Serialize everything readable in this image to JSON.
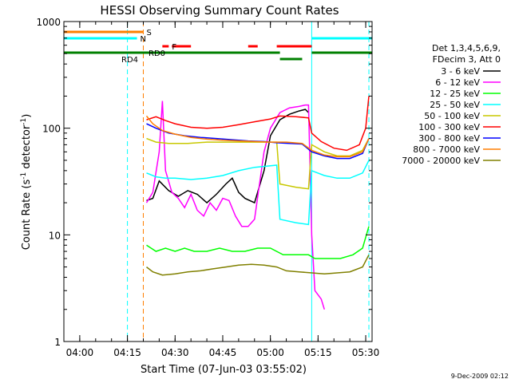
{
  "chart_data": {
    "type": "line",
    "title": "HESSI Observing Summary Count Rates",
    "xlabel": "Start Time (07-Jun-03 03:55:02)",
    "ylabel": "Count Rate (s",
    "ylabel_sup1": "-1",
    "ylabel_mid": " detector",
    "ylabel_sup2": "-1",
    "ylabel_end": ")",
    "y_scale": "log",
    "ylim": [
      1,
      1000
    ],
    "xlim": [
      "03:55",
      "05:32"
    ],
    "x_ticks": [
      "04:00",
      "04:15",
      "04:30",
      "04:45",
      "05:00",
      "05:15",
      "05:30"
    ],
    "y_ticks": [
      "1",
      "10",
      "100",
      "1000"
    ],
    "timestamp": "9-Dec-2009 02:12",
    "legend_header": [
      "Det 1,3,4,5,6,9,",
      "FDecim 3, Att 0"
    ],
    "legend_placement": "right",
    "flags": [
      {
        "label": "S",
        "color": "#ff7f00",
        "segments": [
          [
            "03:55",
            "04:20"
          ]
        ]
      },
      {
        "label": "N",
        "color": "#00ffff",
        "segments": [
          [
            "03:55",
            "04:18"
          ],
          [
            "05:13",
            "05:32"
          ]
        ]
      },
      {
        "label": "F",
        "color": "#ff0000",
        "segments": [
          [
            "04:26",
            "04:28"
          ],
          [
            "04:29",
            "04:35"
          ],
          [
            "04:53",
            "04:56"
          ],
          [
            "05:02",
            "05:13"
          ]
        ]
      },
      {
        "label": "RD0",
        "color": "#008000",
        "segments": [
          [
            "03:55",
            "05:03"
          ],
          [
            "05:13",
            "05:32"
          ]
        ]
      },
      {
        "label": "RD4",
        "color": "#008000",
        "segments": [
          [
            "05:03",
            "05:10"
          ]
        ]
      }
    ],
    "vlines": [
      {
        "time": "04:15",
        "color": "#00ffff",
        "style": "dashed"
      },
      {
        "time": "04:20",
        "color": "#ff7f00",
        "style": "dashed"
      },
      {
        "time": "05:13",
        "color": "#00ffff",
        "style": "solid"
      },
      {
        "time": "05:31",
        "color": "#00ffff",
        "style": "dashed"
      }
    ],
    "series": [
      {
        "name": "3 - 6 keV",
        "color": "#000000",
        "points": [
          [
            "04:21",
            21
          ],
          [
            "04:23",
            22
          ],
          [
            "04:25",
            32
          ],
          [
            "04:28",
            26
          ],
          [
            "04:31",
            23
          ],
          [
            "04:34",
            26
          ],
          [
            "04:37",
            24
          ],
          [
            "04:40",
            20
          ],
          [
            "04:43",
            24
          ],
          [
            "04:46",
            30
          ],
          [
            "04:48",
            34
          ],
          [
            "04:50",
            25
          ],
          [
            "04:52",
            22
          ],
          [
            "04:55",
            20
          ],
          [
            "04:58",
            40
          ],
          [
            "05:00",
            85
          ],
          [
            "05:03",
            120
          ],
          [
            "05:06",
            135
          ],
          [
            "05:09",
            145
          ],
          [
            "05:11",
            150
          ],
          [
            "05:12",
            140
          ]
        ]
      },
      {
        "name": "6 - 12 keV",
        "color": "#ff00ff",
        "points": [
          [
            "04:21",
            20
          ],
          [
            "04:23",
            25
          ],
          [
            "04:25",
            60
          ],
          [
            "04:26",
            180
          ],
          [
            "04:27",
            40
          ],
          [
            "04:29",
            25
          ],
          [
            "04:31",
            22
          ],
          [
            "04:33",
            18
          ],
          [
            "04:35",
            24
          ],
          [
            "04:37",
            17
          ],
          [
            "04:39",
            15
          ],
          [
            "04:41",
            20
          ],
          [
            "04:43",
            17
          ],
          [
            "04:45",
            22
          ],
          [
            "04:47",
            21
          ],
          [
            "04:49",
            15
          ],
          [
            "04:51",
            12
          ],
          [
            "04:53",
            12
          ],
          [
            "04:55",
            14
          ],
          [
            "04:58",
            60
          ],
          [
            "05:00",
            100
          ],
          [
            "05:03",
            140
          ],
          [
            "05:06",
            155
          ],
          [
            "05:09",
            160
          ],
          [
            "05:11",
            165
          ],
          [
            "05:12",
            165
          ],
          [
            "05:13",
            10
          ],
          [
            "05:14",
            3
          ],
          [
            "05:16",
            2.5
          ],
          [
            "05:17",
            2
          ]
        ]
      },
      {
        "name": "12 - 25 keV",
        "color": "#00ff00",
        "points": [
          [
            "04:21",
            8
          ],
          [
            "04:24",
            7
          ],
          [
            "04:27",
            7.5
          ],
          [
            "04:30",
            7
          ],
          [
            "04:33",
            7.5
          ],
          [
            "04:36",
            7
          ],
          [
            "04:40",
            7
          ],
          [
            "04:44",
            7.5
          ],
          [
            "04:48",
            7
          ],
          [
            "04:52",
            7
          ],
          [
            "04:56",
            7.5
          ],
          [
            "05:00",
            7.5
          ],
          [
            "05:04",
            6.5
          ],
          [
            "05:08",
            6.5
          ],
          [
            "05:12",
            6.5
          ],
          [
            "05:14",
            6
          ],
          [
            "05:18",
            6
          ],
          [
            "05:22",
            6
          ],
          [
            "05:26",
            6.5
          ],
          [
            "05:29",
            7.5
          ],
          [
            "05:31",
            12
          ]
        ]
      },
      {
        "name": "25 - 50 keV",
        "color": "#00ffff",
        "points": [
          [
            "04:21",
            38
          ],
          [
            "04:24",
            35
          ],
          [
            "04:27",
            34
          ],
          [
            "04:30",
            34
          ],
          [
            "04:35",
            33
          ],
          [
            "04:40",
            34
          ],
          [
            "04:45",
            36
          ],
          [
            "04:50",
            40
          ],
          [
            "04:55",
            43
          ],
          [
            "05:02",
            45
          ],
          [
            "05:03",
            14
          ],
          [
            "05:08",
            13
          ],
          [
            "05:12",
            12.5
          ],
          [
            "05:13",
            40
          ],
          [
            "05:17",
            36
          ],
          [
            "05:21",
            34
          ],
          [
            "05:25",
            34
          ],
          [
            "05:29",
            38
          ],
          [
            "05:31",
            50
          ]
        ]
      },
      {
        "name": "50 - 100 keV",
        "color": "#c8c800",
        "points": [
          [
            "04:21",
            80
          ],
          [
            "04:24",
            74
          ],
          [
            "04:28",
            72
          ],
          [
            "04:34",
            72
          ],
          [
            "04:40",
            74
          ],
          [
            "04:46",
            74
          ],
          [
            "04:52",
            74
          ],
          [
            "04:58",
            74
          ],
          [
            "05:02",
            74
          ],
          [
            "05:03",
            30
          ],
          [
            "05:08",
            28
          ],
          [
            "05:12",
            27
          ],
          [
            "05:13",
            70
          ],
          [
            "05:17",
            60
          ],
          [
            "05:21",
            55
          ],
          [
            "05:25",
            55
          ],
          [
            "05:29",
            62
          ],
          [
            "05:31",
            80
          ]
        ]
      },
      {
        "name": "100 - 300 keV",
        "color": "#ff0000",
        "points": [
          [
            "04:21",
            120
          ],
          [
            "04:24",
            128
          ],
          [
            "04:27",
            118
          ],
          [
            "04:30",
            110
          ],
          [
            "04:35",
            102
          ],
          [
            "04:40",
            100
          ],
          [
            "04:45",
            102
          ],
          [
            "04:50",
            108
          ],
          [
            "04:55",
            115
          ],
          [
            "05:00",
            122
          ],
          [
            "05:03",
            130
          ],
          [
            "05:08",
            128
          ],
          [
            "05:12",
            125
          ],
          [
            "05:13",
            90
          ],
          [
            "05:16",
            75
          ],
          [
            "05:20",
            65
          ],
          [
            "05:24",
            62
          ],
          [
            "05:28",
            70
          ],
          [
            "05:30",
            100
          ],
          [
            "05:31",
            200
          ]
        ]
      },
      {
        "name": "300 - 800 keV",
        "color": "#0000ff",
        "points": [
          [
            "04:21",
            110
          ],
          [
            "04:24",
            100
          ],
          [
            "04:28",
            90
          ],
          [
            "04:33",
            85
          ],
          [
            "04:38",
            82
          ],
          [
            "04:43",
            80
          ],
          [
            "04:48",
            78
          ],
          [
            "04:53",
            76
          ],
          [
            "04:58",
            75
          ],
          [
            "05:02",
            73
          ],
          [
            "05:06",
            72
          ],
          [
            "05:10",
            71
          ],
          [
            "05:13",
            60
          ],
          [
            "05:17",
            55
          ],
          [
            "05:21",
            52
          ],
          [
            "05:25",
            52
          ],
          [
            "05:29",
            58
          ],
          [
            "05:31",
            80
          ]
        ]
      },
      {
        "name": "800 - 7000 keV",
        "color": "#ff7f00",
        "points": [
          [
            "04:21",
            130
          ],
          [
            "04:23",
            110
          ],
          [
            "04:26",
            95
          ],
          [
            "04:30",
            88
          ],
          [
            "04:35",
            82
          ],
          [
            "04:40",
            79
          ],
          [
            "04:45",
            77
          ],
          [
            "04:50",
            76
          ],
          [
            "04:55",
            75
          ],
          [
            "05:00",
            74
          ],
          [
            "05:05",
            74
          ],
          [
            "05:10",
            72
          ],
          [
            "05:13",
            62
          ],
          [
            "05:17",
            56
          ],
          [
            "05:21",
            54
          ],
          [
            "05:25",
            54
          ],
          [
            "05:29",
            60
          ],
          [
            "05:31",
            80
          ]
        ]
      },
      {
        "name": "7000 - 20000 keV",
        "color": "#808000",
        "points": [
          [
            "04:21",
            5
          ],
          [
            "04:23",
            4.5
          ],
          [
            "04:26",
            4.2
          ],
          [
            "04:30",
            4.3
          ],
          [
            "04:34",
            4.5
          ],
          [
            "04:38",
            4.6
          ],
          [
            "04:42",
            4.8
          ],
          [
            "04:46",
            5
          ],
          [
            "04:50",
            5.2
          ],
          [
            "04:54",
            5.3
          ],
          [
            "04:58",
            5.2
          ],
          [
            "05:02",
            5
          ],
          [
            "05:05",
            4.6
          ],
          [
            "05:09",
            4.5
          ],
          [
            "05:13",
            4.4
          ],
          [
            "05:17",
            4.3
          ],
          [
            "05:21",
            4.4
          ],
          [
            "05:25",
            4.5
          ],
          [
            "05:29",
            5
          ],
          [
            "05:31",
            6.5
          ]
        ]
      }
    ]
  }
}
